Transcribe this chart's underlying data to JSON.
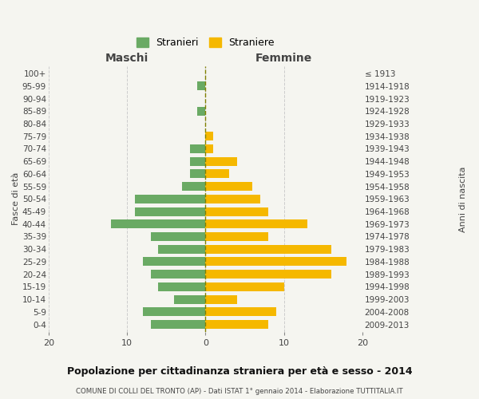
{
  "age_groups": [
    "0-4",
    "5-9",
    "10-14",
    "15-19",
    "20-24",
    "25-29",
    "30-34",
    "35-39",
    "40-44",
    "45-49",
    "50-54",
    "55-59",
    "60-64",
    "65-69",
    "70-74",
    "75-79",
    "80-84",
    "85-89",
    "90-94",
    "95-99",
    "100+"
  ],
  "birth_years": [
    "2009-2013",
    "2004-2008",
    "1999-2003",
    "1994-1998",
    "1989-1993",
    "1984-1988",
    "1979-1983",
    "1974-1978",
    "1969-1973",
    "1964-1968",
    "1959-1963",
    "1954-1958",
    "1949-1953",
    "1944-1948",
    "1939-1943",
    "1934-1938",
    "1929-1933",
    "1924-1928",
    "1919-1923",
    "1914-1918",
    "≤ 1913"
  ],
  "maschi": [
    7,
    8,
    4,
    6,
    7,
    8,
    6,
    7,
    12,
    9,
    9,
    3,
    2,
    2,
    2,
    0,
    0,
    1,
    0,
    1,
    0
  ],
  "femmine": [
    8,
    9,
    4,
    10,
    16,
    18,
    16,
    8,
    13,
    8,
    7,
    6,
    3,
    4,
    1,
    1,
    0,
    0,
    0,
    0,
    0
  ],
  "color_maschi": "#6aaa64",
  "color_femmine": "#f5b800",
  "title": "Popolazione per cittadinanza straniera per età e sesso - 2014",
  "subtitle": "COMUNE DI COLLI DEL TRONTO (AP) - Dati ISTAT 1° gennaio 2014 - Elaborazione TUTTITALIA.IT",
  "xlabel_left": "Maschi",
  "xlabel_right": "Femmine",
  "ylabel_left": "Fasce di età",
  "ylabel_right": "Anni di nascita",
  "legend_maschi": "Stranieri",
  "legend_femmine": "Straniere",
  "xlim": 20,
  "bg_color": "#f5f5f0",
  "grid_color": "#cccccc"
}
